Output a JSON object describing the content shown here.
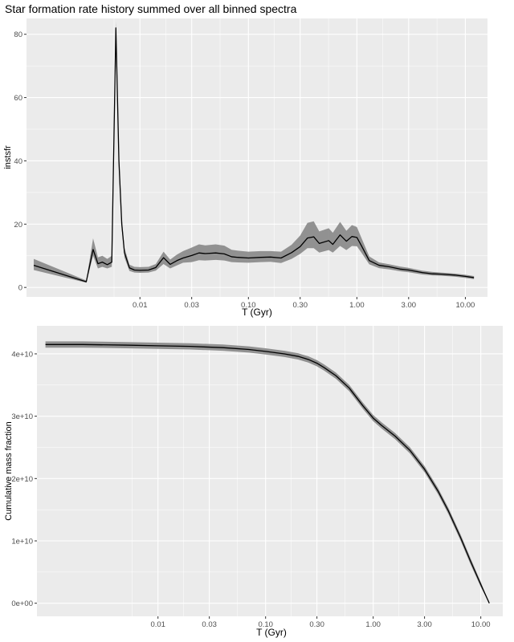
{
  "title": "Star formation rate history summed over all binned spectra",
  "colors": {
    "panel": "#ebebeb",
    "grid_major": "#ffffff",
    "ribbon": "#8c8c8c",
    "line": "#000000",
    "tick_text": "#4d4d4d"
  },
  "chart_data": [
    {
      "type": "area",
      "title": "Star formation rate history summed over all binned spectra",
      "xlabel": "T (Gyr)",
      "ylabel": "instsfr",
      "x_scale": "log10",
      "xlim": [
        0.0009,
        16
      ],
      "ylim": [
        -3,
        85
      ],
      "grid": true,
      "x_tick_labels": [
        "0.01",
        "0.03",
        "0.10",
        "0.30",
        "1.00",
        "3.00",
        "10.00"
      ],
      "x_ticks": [
        0.01,
        0.03,
        0.1,
        0.3,
        1,
        3,
        10
      ],
      "y_tick_labels": [
        "0",
        "20",
        "40",
        "60",
        "80"
      ],
      "y_ticks": [
        0,
        20,
        40,
        60,
        80
      ],
      "series": [
        {
          "x": [
            0.00105,
            0.0032,
            0.0037,
            0.0041,
            0.0045,
            0.005,
            0.0055,
            0.006,
            0.0064,
            0.0068,
            0.0072,
            0.008,
            0.0089,
            0.01,
            0.012,
            0.014,
            0.0165,
            0.019,
            0.022,
            0.025,
            0.03,
            0.035,
            0.04,
            0.05,
            0.06,
            0.07,
            0.08,
            0.1,
            0.13,
            0.16,
            0.2,
            0.25,
            0.3,
            0.35,
            0.4,
            0.45,
            0.55,
            0.6,
            0.7,
            0.8,
            0.9,
            1.0,
            1.1,
            1.3,
            1.6,
            2.0,
            2.5,
            3.0,
            4.0,
            5.0,
            6.0,
            8.0,
            10.0,
            12.0
          ],
          "y": [
            7.0,
            1.8,
            12.0,
            7.5,
            8.0,
            7.2,
            8.0,
            82.0,
            40.0,
            20.0,
            11.0,
            6.2,
            5.5,
            5.4,
            5.5,
            6.3,
            9.4,
            7.3,
            8.5,
            9.3,
            10.1,
            10.9,
            10.7,
            10.9,
            10.6,
            9.7,
            9.5,
            9.3,
            9.5,
            9.6,
            9.3,
            11.0,
            12.9,
            15.6,
            16.0,
            13.9,
            14.8,
            13.6,
            16.6,
            14.6,
            16.1,
            15.8,
            13.2,
            8.5,
            7.0,
            6.5,
            5.8,
            5.5,
            4.7,
            4.3,
            4.2,
            3.9,
            3.5,
            3.1
          ],
          "lower": [
            5.5,
            1.5,
            10.0,
            6.0,
            6.5,
            6.0,
            6.5,
            80.0,
            37.0,
            18.5,
            9.5,
            5.2,
            4.7,
            4.6,
            4.7,
            5.3,
            7.4,
            6.0,
            7.0,
            7.8,
            8.0,
            8.6,
            8.5,
            8.7,
            8.5,
            8.0,
            7.9,
            7.8,
            8.0,
            8.1,
            7.7,
            9.0,
            10.6,
            12.4,
            12.4,
            11.0,
            11.8,
            11.0,
            13.1,
            11.8,
            13.1,
            13.0,
            11.0,
            7.3,
            6.1,
            5.7,
            5.1,
            4.8,
            4.1,
            3.8,
            3.7,
            3.4,
            3.0,
            2.6
          ],
          "upper": [
            9.0,
            2.2,
            15.5,
            9.5,
            10.0,
            9.0,
            10.0,
            84.0,
            43.0,
            22.0,
            12.5,
            7.2,
            6.5,
            6.4,
            6.5,
            7.4,
            11.3,
            8.8,
            10.4,
            11.5,
            12.6,
            13.6,
            13.3,
            13.6,
            13.2,
            11.9,
            11.6,
            11.3,
            11.5,
            11.5,
            11.3,
            13.5,
            16.4,
            20.4,
            20.9,
            17.7,
            18.7,
            17.3,
            20.7,
            17.9,
            19.7,
            19.1,
            15.7,
            9.8,
            7.9,
            7.3,
            6.6,
            6.2,
            5.3,
            4.9,
            4.7,
            4.4,
            4.0,
            3.6
          ]
        }
      ]
    },
    {
      "type": "area",
      "title": "",
      "xlabel": "T (Gyr)",
      "ylabel": "Cumulative mass fraction",
      "x_scale": "log10",
      "xlim": [
        0.00075,
        16
      ],
      "ylim": [
        -2100000000.0,
        44500000000.0
      ],
      "grid": true,
      "x_tick_labels": [
        "0.01",
        "0.03",
        "0.10",
        "0.30",
        "1.00",
        "3.00",
        "10.00"
      ],
      "x_ticks": [
        0.01,
        0.03,
        0.1,
        0.3,
        1,
        3,
        10
      ],
      "y_tick_labels": [
        "0e+00",
        "1e+10",
        "2e+10",
        "3e+10",
        "4e+10"
      ],
      "y_ticks": [
        0,
        10000000000.0,
        20000000000.0,
        30000000000.0,
        40000000000.0
      ],
      "series": [
        {
          "x": [
            0.0009,
            0.002,
            0.005,
            0.01,
            0.02,
            0.04,
            0.07,
            0.1,
            0.15,
            0.2,
            0.25,
            0.3,
            0.35,
            0.45,
            0.6,
            0.8,
            1.0,
            1.2,
            1.6,
            2.2,
            3.0,
            4.0,
            5.0,
            6.5,
            8.0,
            10.0,
            12.0
          ],
          "y": [
            41500000000.0,
            41500000000.0,
            41400000000.0,
            41300000000.0,
            41200000000.0,
            41000000000.0,
            40700000000.0,
            40400000000.0,
            40000000000.0,
            39600000000.0,
            39100000000.0,
            38500000000.0,
            37800000000.0,
            36500000000.0,
            34500000000.0,
            31700000000.0,
            29700000000.0,
            28500000000.0,
            26800000000.0,
            24500000000.0,
            21500000000.0,
            18000000000.0,
            14800000000.0,
            10500000000.0,
            6800000000.0,
            3000000000.0,
            0.0
          ],
          "lower": [
            41000000000.0,
            41000000000.0,
            40900000000.0,
            40800000000.0,
            40700000000.0,
            40500000000.0,
            40200000000.0,
            39900000000.0,
            39500000000.0,
            39100000000.0,
            38600000000.0,
            38000000000.0,
            37300000000.0,
            36000000000.0,
            34000000000.0,
            31200000000.0,
            29200000000.0,
            28000000000.0,
            26300000000.0,
            24000000000.0,
            21000000000.0,
            17500000000.0,
            14300000000.0,
            10000000000.0,
            6300000000.0,
            2600000000.0,
            0.0
          ],
          "upper": [
            42000000000.0,
            42000000000.0,
            41900000000.0,
            41800000000.0,
            41700000000.0,
            41500000000.0,
            41200000000.0,
            40900000000.0,
            40500000000.0,
            40100000000.0,
            39600000000.0,
            39000000000.0,
            38300000000.0,
            37000000000.0,
            35000000000.0,
            32200000000.0,
            30200000000.0,
            29000000000.0,
            27300000000.0,
            25000000000.0,
            22000000000.0,
            18500000000.0,
            15300000000.0,
            11000000000.0,
            7300000000.0,
            3400000000.0,
            0.0
          ]
        }
      ]
    }
  ]
}
